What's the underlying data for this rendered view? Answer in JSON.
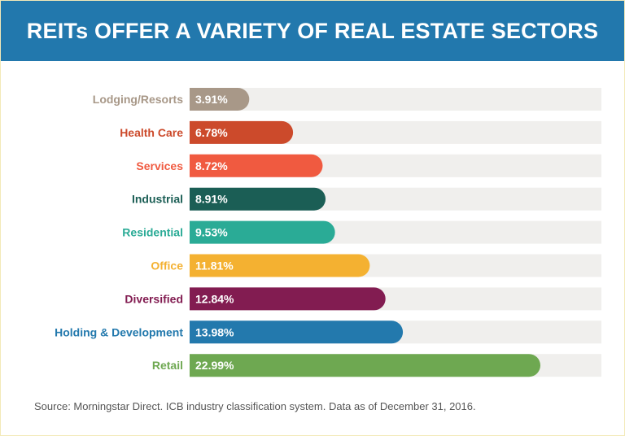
{
  "title": "REITs OFFER A VARIETY OF REAL ESTATE SECTORS",
  "source": "Source: Morningstar Direct. ICB industry classification system. Data as of December 31, 2016.",
  "colors": {
    "header_bg": "#2278ad",
    "track": "#f0efed"
  },
  "chart_data": {
    "type": "bar",
    "orientation": "horizontal",
    "title": "REITs OFFER A VARIETY OF REAL ESTATE SECTORS",
    "xlabel": "",
    "ylabel": "",
    "xlim": [
      0,
      30
    ],
    "unit": "%",
    "categories": [
      "Lodging/Resorts",
      "Health Care",
      "Services",
      "Industrial",
      "Residential",
      "Office",
      "Diversified",
      "Holding & Development",
      "Retail"
    ],
    "values": [
      3.91,
      6.78,
      8.72,
      8.91,
      9.53,
      11.81,
      12.84,
      13.98,
      22.99
    ],
    "value_labels": [
      "3.91%",
      "6.78%",
      "8.72%",
      "8.91%",
      "9.53%",
      "11.81%",
      "12.84%",
      "13.98%",
      "22.99%"
    ],
    "colors": [
      "#a89888",
      "#cc4a2b",
      "#f05a40",
      "#1b5e55",
      "#2aab96",
      "#f4b131",
      "#821c51",
      "#2379ad",
      "#6ea851"
    ]
  }
}
